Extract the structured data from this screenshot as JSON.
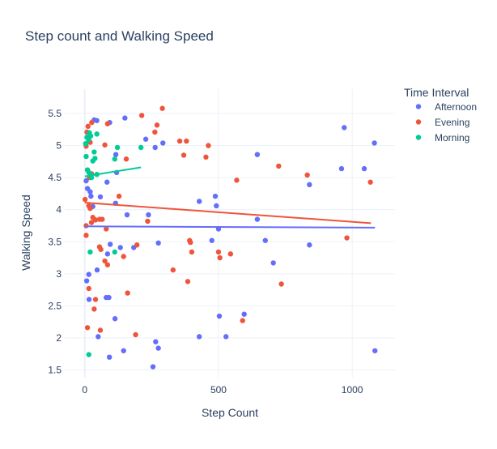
{
  "chart_data": {
    "type": "scatter",
    "title": "Step count and Walking Speed",
    "xlabel": "Step Count",
    "ylabel": "Walking Speed",
    "xlim": [
      -75,
      1160
    ],
    "ylim": [
      1.38,
      5.88
    ],
    "x_ticks": [
      0,
      500,
      1000
    ],
    "y_ticks": [
      1.5,
      2,
      2.5,
      3,
      3.5,
      4,
      4.5,
      5,
      5.5
    ],
    "grid": true,
    "legend_title": "Time Interval",
    "legend_position": "top-right",
    "trendline": "ols",
    "series": [
      {
        "name": "Afternoon",
        "color": "#636efa",
        "points": [
          [
            45,
            5.39
          ],
          [
            93,
            5.36
          ],
          [
            150,
            5.43
          ],
          [
            228,
            5.1
          ],
          [
            263,
            4.97
          ],
          [
            292,
            5.04
          ],
          [
            35,
            5.4
          ],
          [
            116,
            4.86
          ],
          [
            119,
            4.58
          ],
          [
            83,
            4.43
          ],
          [
            58,
            4.2
          ],
          [
            23,
            4.21
          ],
          [
            115,
            4.1
          ],
          [
            10,
            4.33
          ],
          [
            20,
            4.28
          ],
          [
            5,
            4.45
          ],
          [
            30,
            4.05
          ],
          [
            238,
            3.92
          ],
          [
            158,
            3.92
          ],
          [
            428,
            4.13
          ],
          [
            488,
            4.21
          ],
          [
            492,
            4.06
          ],
          [
            645,
            4.86
          ],
          [
            960,
            4.64
          ],
          [
            1045,
            4.64
          ],
          [
            1083,
            5.04
          ],
          [
            970,
            5.28
          ],
          [
            840,
            4.39
          ],
          [
            500,
            3.7
          ],
          [
            645,
            3.85
          ],
          [
            675,
            3.52
          ],
          [
            840,
            3.45
          ],
          [
            705,
            3.17
          ],
          [
            95,
            3.46
          ],
          [
            133,
            3.41
          ],
          [
            183,
            3.41
          ],
          [
            275,
            3.48
          ],
          [
            475,
            3.52
          ],
          [
            15,
            2.99
          ],
          [
            46,
            3.06
          ],
          [
            85,
            3.31
          ],
          [
            7,
            2.89
          ],
          [
            16,
            2.6
          ],
          [
            80,
            2.63
          ],
          [
            90,
            2.63
          ],
          [
            113,
            2.3
          ],
          [
            50,
            2.02
          ],
          [
            92,
            1.7
          ],
          [
            145,
            1.8
          ],
          [
            255,
            1.55
          ],
          [
            265,
            1.94
          ],
          [
            275,
            1.84
          ],
          [
            428,
            2.02
          ],
          [
            503,
            2.34
          ],
          [
            528,
            2.02
          ],
          [
            596,
            2.37
          ],
          [
            1085,
            1.8
          ]
        ],
        "trend": [
          [
            0,
            3.74
          ],
          [
            1085,
            3.72
          ]
        ]
      },
      {
        "name": "Evening",
        "color": "#EF553B",
        "points": [
          [
            12,
            5.3
          ],
          [
            26,
            5.36
          ],
          [
            8,
            5.21
          ],
          [
            5,
            4.99
          ],
          [
            15,
            5.12
          ],
          [
            20,
            5.05
          ],
          [
            85,
            5.34
          ],
          [
            213,
            5.47
          ],
          [
            290,
            5.58
          ],
          [
            262,
            5.21
          ],
          [
            270,
            5.32
          ],
          [
            355,
            5.07
          ],
          [
            380,
            5.07
          ],
          [
            370,
            4.85
          ],
          [
            155,
            4.79
          ],
          [
            75,
            5.01
          ],
          [
            453,
            4.82
          ],
          [
            462,
            5.0
          ],
          [
            568,
            4.46
          ],
          [
            725,
            4.68
          ],
          [
            832,
            4.54
          ],
          [
            1068,
            4.43
          ],
          [
            10,
            4.62
          ],
          [
            25,
            4.56
          ],
          [
            17,
            4.5
          ],
          [
            1,
            4.16
          ],
          [
            15,
            4.06
          ],
          [
            20,
            4.02
          ],
          [
            30,
            3.88
          ],
          [
            40,
            3.84
          ],
          [
            55,
            3.85
          ],
          [
            65,
            3.85
          ],
          [
            128,
            4.21
          ],
          [
            235,
            3.82
          ],
          [
            5,
            3.75
          ],
          [
            25,
            3.8
          ],
          [
            80,
            3.7
          ],
          [
            392,
            3.52
          ],
          [
            395,
            3.49
          ],
          [
            400,
            3.34
          ],
          [
            500,
            3.34
          ],
          [
            505,
            3.25
          ],
          [
            545,
            3.31
          ],
          [
            195,
            3.45
          ],
          [
            145,
            3.27
          ],
          [
            5,
            3.6
          ],
          [
            55,
            3.42
          ],
          [
            60,
            3.38
          ],
          [
            75,
            3.2
          ],
          [
            85,
            3.14
          ],
          [
            330,
            3.06
          ],
          [
            385,
            2.88
          ],
          [
            735,
            2.84
          ],
          [
            980,
            3.56
          ],
          [
            15,
            2.77
          ],
          [
            40,
            2.6
          ],
          [
            35,
            2.45
          ],
          [
            160,
            2.7
          ],
          [
            58,
            2.12
          ],
          [
            190,
            2.05
          ],
          [
            590,
            2.27
          ],
          [
            10,
            2.16
          ]
        ],
        "trend": [
          [
            0,
            4.11
          ],
          [
            1070,
            3.79
          ]
        ]
      },
      {
        "name": "Morning",
        "color": "#00cc96",
        "points": [
          [
            3,
            5.03
          ],
          [
            8,
            5.13
          ],
          [
            14,
            5.09
          ],
          [
            17,
            5.2
          ],
          [
            22,
            5.15
          ],
          [
            45,
            5.18
          ],
          [
            5,
            4.83
          ],
          [
            35,
            4.9
          ],
          [
            30,
            4.76
          ],
          [
            38,
            4.8
          ],
          [
            112,
            4.79
          ],
          [
            122,
            4.97
          ],
          [
            210,
            4.97
          ],
          [
            10,
            4.62
          ],
          [
            15,
            4.58
          ],
          [
            22,
            4.54
          ],
          [
            25,
            4.5
          ],
          [
            45,
            4.55
          ],
          [
            20,
            3.34
          ],
          [
            112,
            3.34
          ],
          [
            15,
            1.74
          ]
        ],
        "trend": [
          [
            0,
            4.52
          ],
          [
            210,
            4.66
          ]
        ]
      }
    ]
  }
}
